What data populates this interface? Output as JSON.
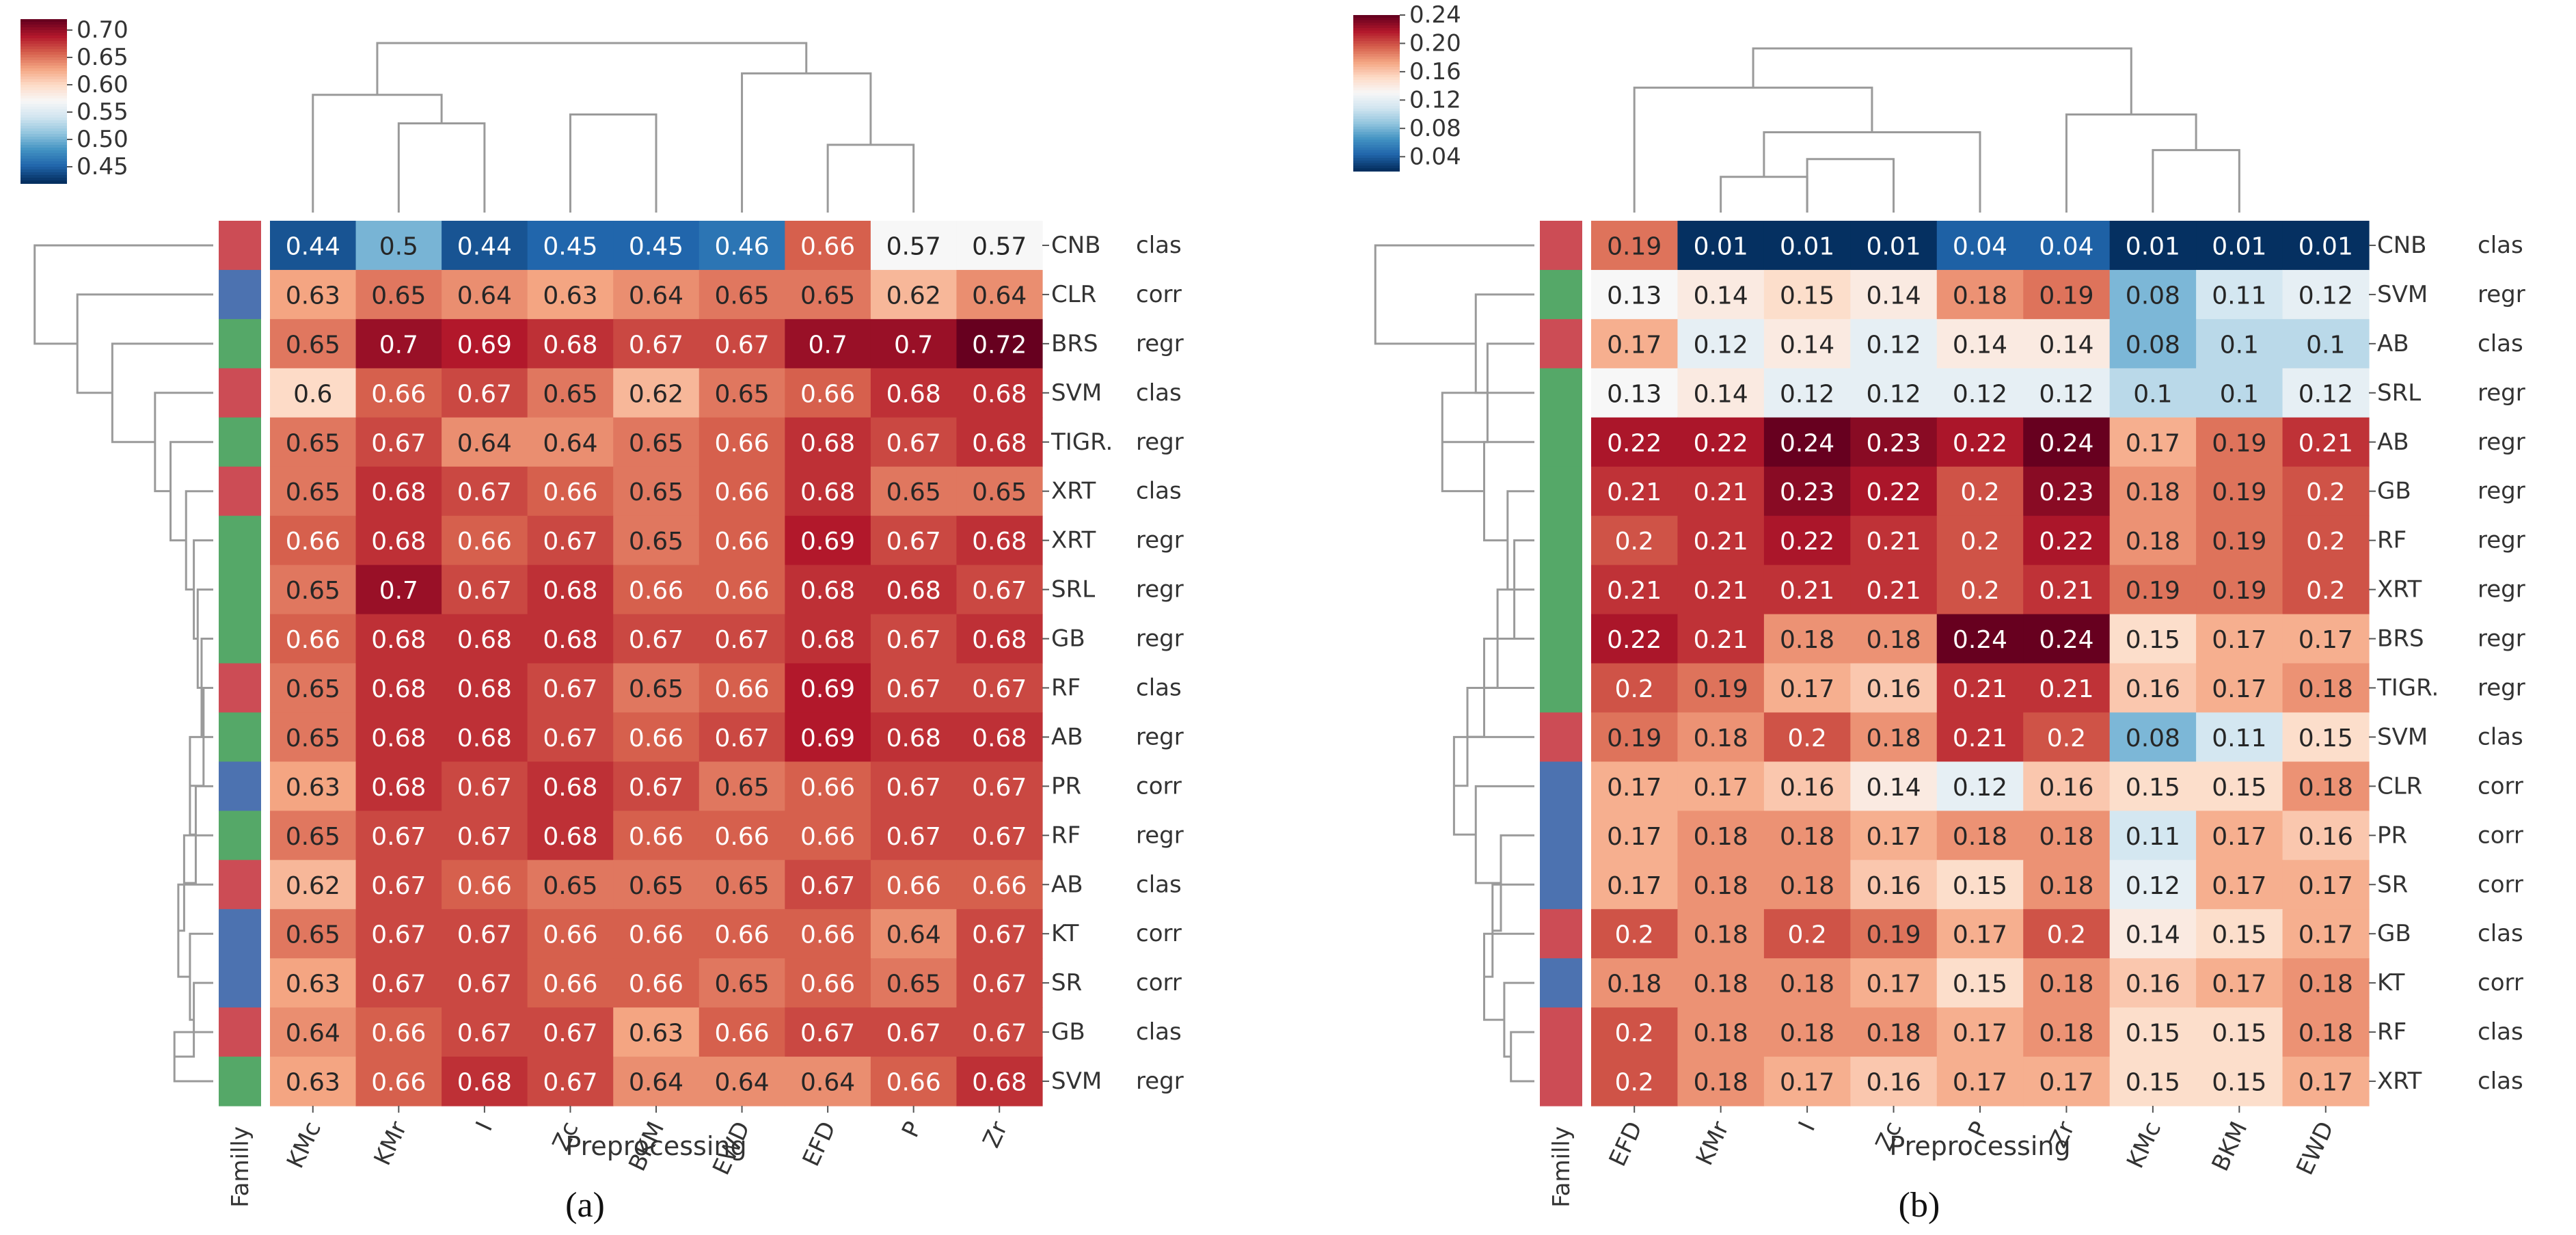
{
  "colors": {
    "clas": "#cc4c55",
    "corr": "#4c72b0",
    "regr": "#55a868",
    "cmap_low": "#053061",
    "cmap_mid": "#f7f7f7",
    "cmap_high": "#67001f",
    "dendrogram": "#9a9a9a"
  },
  "chart_data": [
    {
      "panel_label": "(a)",
      "type": "heatmap",
      "xlabel": "Preprocessing",
      "family_label": "Familly",
      "columns": [
        "KMc",
        "KMr",
        "I",
        "Zc",
        "BKM",
        "EWD",
        "EFD",
        "P",
        "Zr"
      ],
      "rows": [
        {
          "model": "CNB",
          "family": "clas",
          "values": [
            "0.44",
            "0.5",
            "0.44",
            "0.45",
            "0.45",
            "0.46",
            "0.66",
            "0.57",
            "0.57"
          ]
        },
        {
          "model": "CLR",
          "family": "corr",
          "values": [
            "0.63",
            "0.65",
            "0.64",
            "0.63",
            "0.64",
            "0.65",
            "0.65",
            "0.62",
            "0.64"
          ]
        },
        {
          "model": "BRS",
          "family": "regr",
          "values": [
            "0.65",
            "0.7",
            "0.69",
            "0.68",
            "0.67",
            "0.67",
            "0.7",
            "0.7",
            "0.72"
          ]
        },
        {
          "model": "SVM",
          "family": "clas",
          "values": [
            "0.6",
            "0.66",
            "0.67",
            "0.65",
            "0.62",
            "0.65",
            "0.66",
            "0.68",
            "0.68"
          ]
        },
        {
          "model": "TIGR.",
          "family": "regr",
          "values": [
            "0.65",
            "0.67",
            "0.64",
            "0.64",
            "0.65",
            "0.66",
            "0.68",
            "0.67",
            "0.68"
          ]
        },
        {
          "model": "XRT",
          "family": "clas",
          "values": [
            "0.65",
            "0.68",
            "0.67",
            "0.66",
            "0.65",
            "0.66",
            "0.68",
            "0.65",
            "0.65"
          ]
        },
        {
          "model": "XRT",
          "family": "regr",
          "values": [
            "0.66",
            "0.68",
            "0.66",
            "0.67",
            "0.65",
            "0.66",
            "0.69",
            "0.67",
            "0.68"
          ]
        },
        {
          "model": "SRL",
          "family": "regr",
          "values": [
            "0.65",
            "0.7",
            "0.67",
            "0.68",
            "0.66",
            "0.66",
            "0.68",
            "0.68",
            "0.67"
          ]
        },
        {
          "model": "GB",
          "family": "regr",
          "values": [
            "0.66",
            "0.68",
            "0.68",
            "0.68",
            "0.67",
            "0.67",
            "0.68",
            "0.67",
            "0.68"
          ]
        },
        {
          "model": "RF",
          "family": "clas",
          "values": [
            "0.65",
            "0.68",
            "0.68",
            "0.67",
            "0.65",
            "0.66",
            "0.69",
            "0.67",
            "0.67"
          ]
        },
        {
          "model": "AB",
          "family": "regr",
          "values": [
            "0.65",
            "0.68",
            "0.68",
            "0.67",
            "0.66",
            "0.67",
            "0.69",
            "0.68",
            "0.68"
          ]
        },
        {
          "model": "PR",
          "family": "corr",
          "values": [
            "0.63",
            "0.68",
            "0.67",
            "0.68",
            "0.67",
            "0.65",
            "0.66",
            "0.67",
            "0.67"
          ]
        },
        {
          "model": "RF",
          "family": "regr",
          "values": [
            "0.65",
            "0.67",
            "0.67",
            "0.68",
            "0.66",
            "0.66",
            "0.66",
            "0.67",
            "0.67"
          ]
        },
        {
          "model": "AB",
          "family": "clas",
          "values": [
            "0.62",
            "0.67",
            "0.66",
            "0.65",
            "0.65",
            "0.65",
            "0.67",
            "0.66",
            "0.66"
          ]
        },
        {
          "model": "KT",
          "family": "corr",
          "values": [
            "0.65",
            "0.67",
            "0.67",
            "0.66",
            "0.66",
            "0.66",
            "0.66",
            "0.64",
            "0.67"
          ]
        },
        {
          "model": "SR",
          "family": "corr",
          "values": [
            "0.63",
            "0.67",
            "0.67",
            "0.66",
            "0.66",
            "0.65",
            "0.66",
            "0.65",
            "0.67"
          ]
        },
        {
          "model": "GB",
          "family": "clas",
          "values": [
            "0.64",
            "0.66",
            "0.67",
            "0.67",
            "0.63",
            "0.66",
            "0.67",
            "0.67",
            "0.67"
          ]
        },
        {
          "model": "SVM",
          "family": "regr",
          "values": [
            "0.63",
            "0.66",
            "0.68",
            "0.67",
            "0.64",
            "0.64",
            "0.64",
            "0.66",
            "0.68"
          ]
        }
      ],
      "colorbar": {
        "min": 0.42,
        "max": 0.72,
        "ticks": [
          "0.70",
          "0.65",
          "0.60",
          "0.55",
          "0.50",
          "0.45"
        ]
      }
    },
    {
      "panel_label": "(b)",
      "type": "heatmap",
      "xlabel": "Preprocessing",
      "family_label": "Familly",
      "columns": [
        "EFD",
        "KMr",
        "I",
        "Zc",
        "P",
        "Zr",
        "KMc",
        "BKM",
        "EWD"
      ],
      "rows": [
        {
          "model": "CNB",
          "family": "clas",
          "values": [
            "0.19",
            "0.01",
            "0.01",
            "0.01",
            "0.04",
            "0.04",
            "0.01",
            "0.01",
            "0.01"
          ]
        },
        {
          "model": "SVM",
          "family": "regr",
          "values": [
            "0.13",
            "0.14",
            "0.15",
            "0.14",
            "0.18",
            "0.19",
            "0.08",
            "0.11",
            "0.12"
          ]
        },
        {
          "model": "AB",
          "family": "clas",
          "values": [
            "0.17",
            "0.12",
            "0.14",
            "0.12",
            "0.14",
            "0.14",
            "0.08",
            "0.1",
            "0.1"
          ]
        },
        {
          "model": "SRL",
          "family": "regr",
          "values": [
            "0.13",
            "0.14",
            "0.12",
            "0.12",
            "0.12",
            "0.12",
            "0.1",
            "0.1",
            "0.12"
          ]
        },
        {
          "model": "AB",
          "family": "regr",
          "values": [
            "0.22",
            "0.22",
            "0.24",
            "0.23",
            "0.22",
            "0.24",
            "0.17",
            "0.19",
            "0.21"
          ]
        },
        {
          "model": "GB",
          "family": "regr",
          "values": [
            "0.21",
            "0.21",
            "0.23",
            "0.22",
            "0.2",
            "0.23",
            "0.18",
            "0.19",
            "0.2"
          ]
        },
        {
          "model": "RF",
          "family": "regr",
          "values": [
            "0.2",
            "0.21",
            "0.22",
            "0.21",
            "0.2",
            "0.22",
            "0.18",
            "0.19",
            "0.2"
          ]
        },
        {
          "model": "XRT",
          "family": "regr",
          "values": [
            "0.21",
            "0.21",
            "0.21",
            "0.21",
            "0.2",
            "0.21",
            "0.19",
            "0.19",
            "0.2"
          ]
        },
        {
          "model": "BRS",
          "family": "regr",
          "values": [
            "0.22",
            "0.21",
            "0.18",
            "0.18",
            "0.24",
            "0.24",
            "0.15",
            "0.17",
            "0.17"
          ]
        },
        {
          "model": "TIGR.",
          "family": "regr",
          "values": [
            "0.2",
            "0.19",
            "0.17",
            "0.16",
            "0.21",
            "0.21",
            "0.16",
            "0.17",
            "0.18"
          ]
        },
        {
          "model": "SVM",
          "family": "clas",
          "values": [
            "0.19",
            "0.18",
            "0.2",
            "0.18",
            "0.21",
            "0.2",
            "0.08",
            "0.11",
            "0.15"
          ]
        },
        {
          "model": "CLR",
          "family": "corr",
          "values": [
            "0.17",
            "0.17",
            "0.16",
            "0.14",
            "0.12",
            "0.16",
            "0.15",
            "0.15",
            "0.18"
          ]
        },
        {
          "model": "PR",
          "family": "corr",
          "values": [
            "0.17",
            "0.18",
            "0.18",
            "0.17",
            "0.18",
            "0.18",
            "0.11",
            "0.17",
            "0.16"
          ]
        },
        {
          "model": "SR",
          "family": "corr",
          "values": [
            "0.17",
            "0.18",
            "0.18",
            "0.16",
            "0.15",
            "0.18",
            "0.12",
            "0.17",
            "0.17"
          ]
        },
        {
          "model": "GB",
          "family": "clas",
          "values": [
            "0.2",
            "0.18",
            "0.2",
            "0.19",
            "0.17",
            "0.2",
            "0.14",
            "0.15",
            "0.17"
          ]
        },
        {
          "model": "KT",
          "family": "corr",
          "values": [
            "0.18",
            "0.18",
            "0.18",
            "0.17",
            "0.15",
            "0.18",
            "0.16",
            "0.17",
            "0.18"
          ]
        },
        {
          "model": "RF",
          "family": "clas",
          "values": [
            "0.2",
            "0.18",
            "0.18",
            "0.18",
            "0.17",
            "0.18",
            "0.15",
            "0.15",
            "0.18"
          ]
        },
        {
          "model": "XRT",
          "family": "clas",
          "values": [
            "0.2",
            "0.18",
            "0.17",
            "0.16",
            "0.17",
            "0.17",
            "0.15",
            "0.15",
            "0.17"
          ]
        }
      ],
      "colorbar": {
        "min": 0.02,
        "max": 0.24,
        "ticks": [
          "0.24",
          "0.20",
          "0.16",
          "0.12",
          "0.08",
          "0.04"
        ]
      }
    }
  ]
}
